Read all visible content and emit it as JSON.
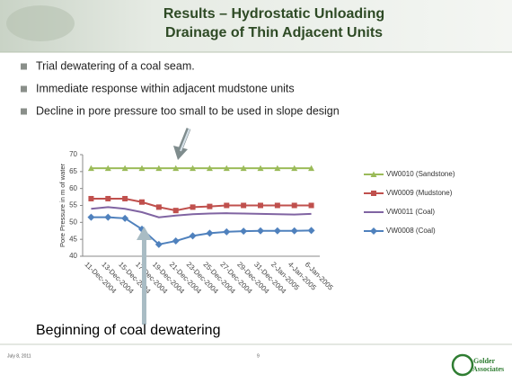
{
  "title_lines": [
    "Results – Hydrostatic Unloading",
    "Drainage of Thin Adjacent Units"
  ],
  "bullets": [
    "Trial dewatering of a coal seam.",
    "Immediate response within adjacent mudstone units",
    "Decline in pore pressure too small to be used in slope design"
  ],
  "annotation": "Beginning of coal dewatering",
  "footer": {
    "date": "July 8, 2011",
    "page": "9",
    "logo_lines": [
      "Golder",
      "Associates"
    ]
  },
  "chart_data": {
    "type": "line",
    "y_label": "Pore Pressure in m of water",
    "categories": [
      "11-Dec-2004",
      "13-Dec-2004",
      "15-Dec-2004",
      "17-Dec-2004",
      "19-Dec-2004",
      "21-Dec-2004",
      "23-Dec-2004",
      "25-Dec-2004",
      "27-Dec-2004",
      "29-Dec-2004",
      "31-Dec-2004",
      "2-Jan-2005",
      "4-Jan-2005",
      "6-Jan-2005"
    ],
    "ylim": [
      40,
      70
    ],
    "yticks": [
      40,
      45,
      50,
      55,
      60,
      65,
      70
    ],
    "legend": "right",
    "series": [
      {
        "name": "VW0010 (Sandstone)",
        "color": "#9bbb59",
        "marker": "triangle",
        "values": [
          66,
          66,
          66,
          66,
          66,
          66,
          66,
          66,
          66,
          66,
          66,
          66,
          66,
          66
        ]
      },
      {
        "name": "VW0009 (Mudstone)",
        "color": "#c0504d",
        "marker": "square",
        "values": [
          57,
          57,
          57,
          56,
          54.5,
          53.5,
          54.5,
          54.7,
          55,
          55,
          55,
          55,
          55,
          55
        ]
      },
      {
        "name": "VW0011 (Coal)",
        "color": "#8064a2",
        "marker": "none",
        "values": [
          54,
          54.5,
          54,
          53,
          51.5,
          52,
          52.4,
          52.6,
          52.7,
          52.6,
          52.5,
          52.4,
          52.3,
          52.5
        ]
      },
      {
        "name": "VW0008 (Coal)",
        "color": "#4f81bd",
        "marker": "diamond",
        "values": [
          51.5,
          51.5,
          51.2,
          48,
          43.5,
          44.5,
          46,
          46.8,
          47.2,
          47.4,
          47.5,
          47.5,
          47.5,
          47.6
        ]
      }
    ]
  }
}
